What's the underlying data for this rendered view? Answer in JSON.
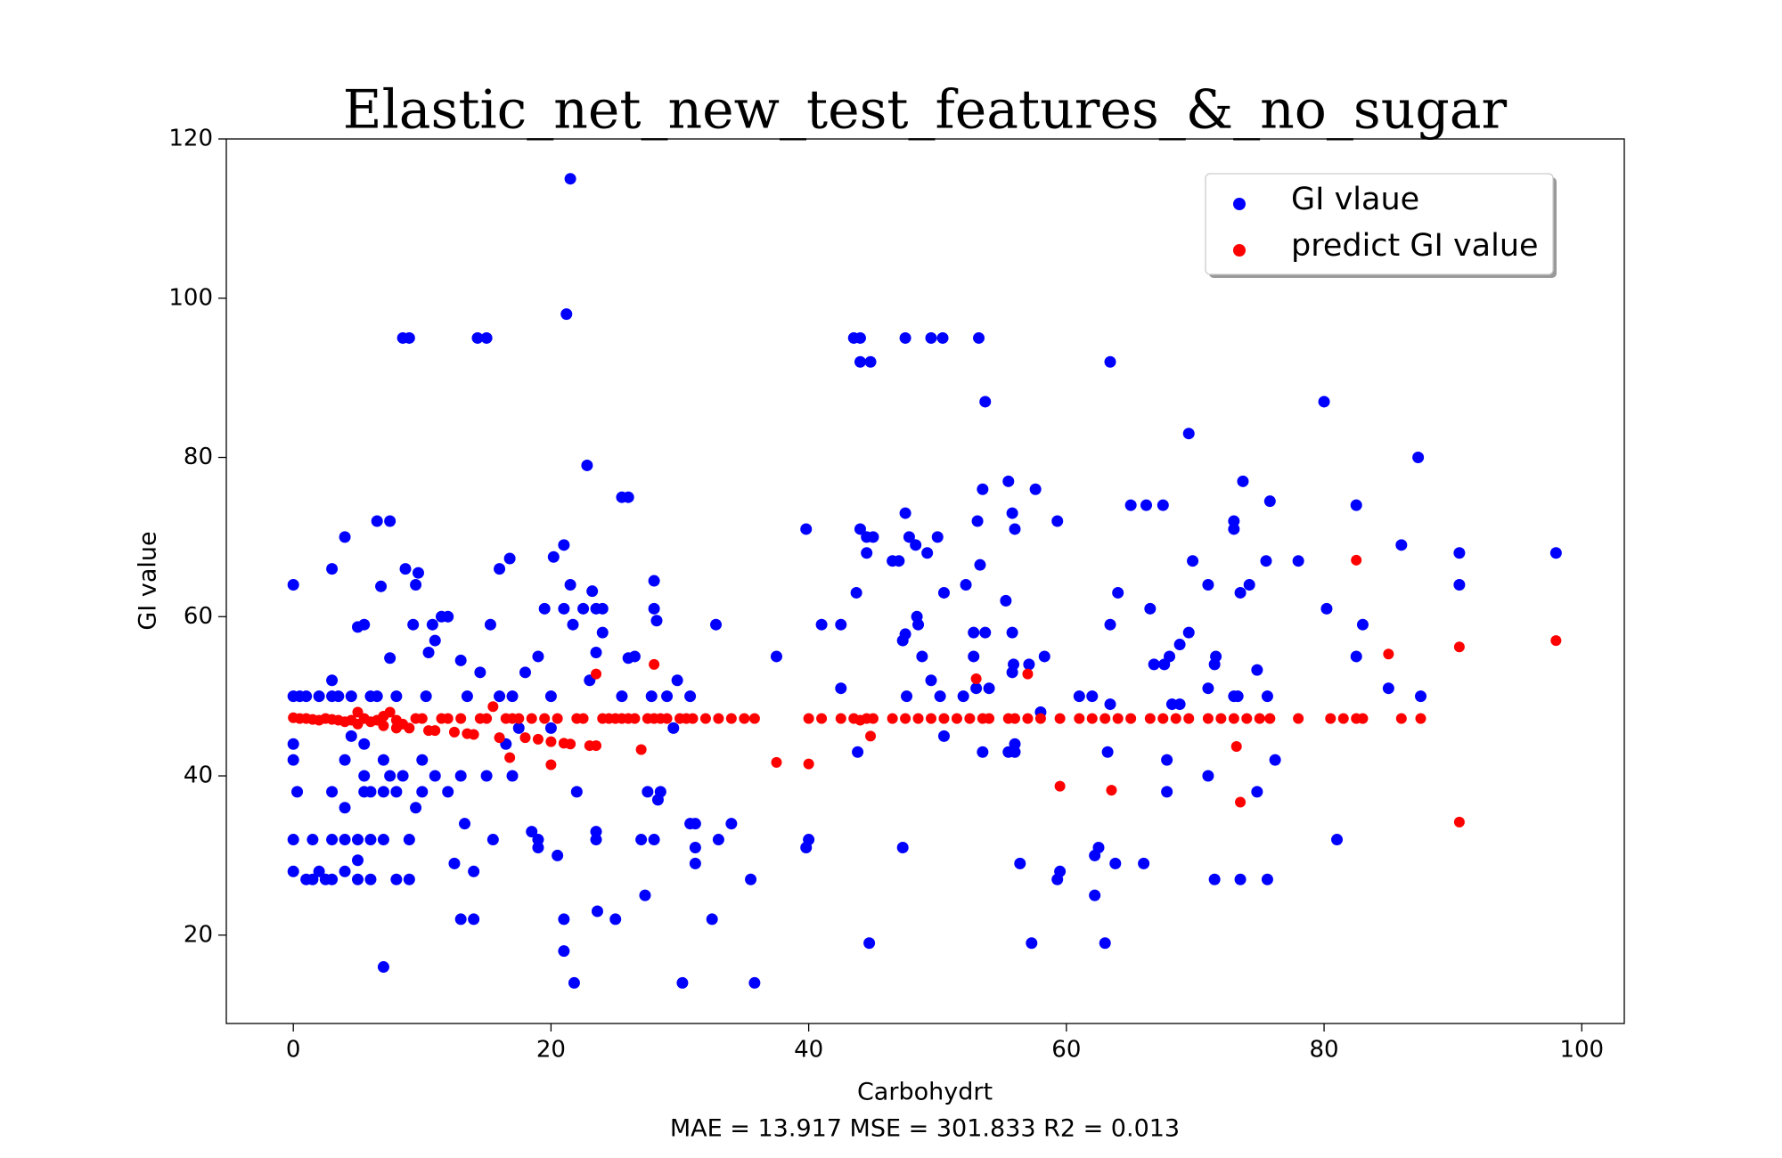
{
  "chart_data": {
    "type": "scatter",
    "title": "Elastic_net_new_test_features_&_no_sugar",
    "x_label": "Carbohydrt",
    "y_label": "GI value",
    "annotation": "MAE = 13.917 MSE = 301.833 R2 = 0.013",
    "xlim": [
      -5.2,
      103.3
    ],
    "ylim": [
      8.9,
      120
    ],
    "xticks": [
      0,
      20,
      40,
      60,
      80,
      100
    ],
    "yticks": [
      20,
      40,
      60,
      80,
      100,
      120
    ],
    "legend": "upper right",
    "series": [
      {
        "name": "GI vlaue",
        "color": "#0000ff",
        "x": [
          0,
          0,
          0,
          0,
          0,
          0,
          0.3,
          0.5,
          1,
          1,
          1.5,
          1.5,
          2,
          2,
          2.5,
          3,
          3,
          3,
          3,
          3,
          3,
          3.5,
          4,
          4,
          4,
          4,
          4,
          4.5,
          4.5,
          5,
          5,
          5,
          5,
          5.5,
          5.5,
          5.5,
          5.5,
          6,
          6,
          6,
          6,
          6.5,
          6.5,
          6.8,
          7,
          7,
          7,
          7,
          7.5,
          7.5,
          7.5,
          8,
          8,
          8,
          8.5,
          8.5,
          8.7,
          9,
          9,
          9,
          9.3,
          9.5,
          9.5,
          9.7,
          10,
          10,
          10.3,
          10.5,
          10.8,
          11,
          11,
          11.5,
          12,
          12,
          12.5,
          13,
          13,
          13,
          13.3,
          13.5,
          14,
          14,
          14.3,
          14.5,
          15,
          15,
          15.3,
          15.5,
          16,
          16,
          16.5,
          16.8,
          17,
          17,
          17.5,
          18,
          18.5,
          19,
          19,
          19,
          19.5,
          20,
          20,
          20.2,
          20.5,
          21,
          21,
          21,
          21,
          21.2,
          21.5,
          21.5,
          21.7,
          21.8,
          22,
          22.5,
          22.8,
          23,
          23.2,
          23.5,
          23.5,
          23.5,
          23.5,
          23.6,
          24,
          24,
          25,
          25.5,
          25.5,
          26,
          26,
          26.5,
          27,
          27.3,
          27.5,
          27.8,
          28,
          28,
          28,
          28.2,
          28.3,
          28.5,
          29,
          29.5,
          29.8,
          30.2,
          30.8,
          30.8,
          31.2,
          31.2,
          31.2,
          32.5,
          32.8,
          33,
          34,
          35.5,
          35.8,
          37.5,
          39.8,
          39.8,
          40,
          41,
          42.5,
          42.5,
          43.5,
          43.7,
          43.8,
          44,
          44,
          44,
          44.5,
          44.5,
          44.7,
          44.8,
          45,
          46.5,
          47,
          47.5,
          47.3,
          47.5,
          47.6,
          47.8,
          47.3,
          47.5,
          48.3,
          48.4,
          48.5,
          48.8,
          49.2,
          49.5,
          49.5,
          50,
          50.2,
          50.4,
          50.5,
          50.5,
          52,
          52.2,
          52.8,
          52.8,
          53,
          53.1,
          53.2,
          53.3,
          53.5,
          53.5,
          53.7,
          53.7,
          54,
          55.3,
          55.5,
          55.5,
          55.8,
          55.8,
          55.8,
          55.9,
          56,
          56,
          56,
          56.4,
          57.1,
          57.3,
          57.6,
          58,
          58.3,
          59.3,
          59.3,
          59.5,
          61,
          62,
          62.2,
          62.2,
          62.5,
          63,
          63.2,
          63.4,
          63.4,
          63.4,
          63.8,
          64,
          65,
          66,
          66.2,
          66.5,
          66.8,
          67.5,
          67.6,
          67.8,
          67.8,
          68,
          68.2,
          68.8,
          68.8,
          69.5,
          69.5,
          69.8,
          71,
          71,
          71,
          71.5,
          71.5,
          71.6,
          73,
          73,
          73,
          73.3,
          73.5,
          73.5,
          73.7,
          74.2,
          74.8,
          74.8,
          75.5,
          75.6,
          75.6,
          75.8,
          76.2,
          78,
          80,
          80.2,
          81,
          82.5,
          82.5,
          83,
          85,
          86,
          87.3,
          87.5,
          90.5,
          90.5,
          98
        ],
        "values": [
          64,
          50,
          44,
          42,
          32,
          28,
          38,
          50,
          50,
          27,
          32,
          27,
          50,
          28,
          27,
          66,
          52,
          50,
          38,
          32,
          27,
          50,
          70,
          42,
          32,
          28,
          36,
          50,
          45,
          58.7,
          32,
          27,
          29.4,
          59,
          44,
          40,
          38,
          50,
          38,
          32,
          27,
          72,
          50,
          63.8,
          42,
          38,
          32,
          16,
          72,
          54.8,
          40,
          50,
          38,
          27,
          95,
          40,
          66,
          95,
          32,
          27,
          59,
          64,
          36,
          65.5,
          42,
          38,
          50,
          55.5,
          59,
          57,
          40,
          60,
          60,
          38,
          29,
          22,
          54.5,
          40,
          34,
          50,
          28,
          22,
          95,
          53,
          95,
          40,
          59,
          32,
          66,
          50,
          44,
          67.3,
          50,
          40,
          46,
          53,
          33,
          55,
          32,
          31,
          61,
          50,
          46,
          67.5,
          30,
          69,
          61,
          18,
          22,
          98,
          64,
          115,
          59,
          14,
          38,
          61,
          79,
          52,
          63.2,
          61,
          55.5,
          33,
          32,
          23,
          58,
          61,
          22,
          75,
          50,
          75,
          54.8,
          55,
          32,
          25,
          38,
          50,
          64.5,
          61,
          32,
          59.5,
          37,
          38,
          50,
          46,
          52,
          14,
          50,
          34,
          34,
          31,
          29,
          22,
          59,
          32,
          34,
          27,
          14,
          55,
          71,
          31,
          32,
          59,
          59,
          51,
          95,
          63,
          43,
          92,
          71,
          95,
          70,
          68,
          19,
          92,
          70,
          67,
          67,
          73,
          57,
          57.8,
          50,
          70,
          31,
          95,
          69,
          60,
          59,
          55,
          68,
          95,
          52,
          70,
          50,
          95,
          45,
          63,
          50,
          64,
          58,
          55,
          51,
          72,
          95,
          66.5,
          76,
          43,
          87,
          58,
          51,
          62,
          77,
          43,
          73,
          58,
          53,
          54,
          71,
          43,
          44,
          29,
          54,
          19,
          76,
          48,
          55,
          72,
          27,
          28,
          50,
          50,
          25,
          30,
          31,
          19,
          43,
          92,
          49,
          59,
          29,
          63,
          74,
          29,
          74,
          61,
          54,
          74,
          54,
          38,
          42,
          55,
          49,
          49,
          56.5,
          83,
          58,
          67,
          64,
          40,
          51,
          27,
          54,
          55,
          71,
          72,
          50,
          50,
          63,
          27,
          77,
          64,
          53.3,
          38,
          67,
          50,
          27,
          74.5,
          42,
          67,
          87,
          61,
          32,
          74,
          55,
          59,
          51,
          69,
          80,
          50,
          68,
          64,
          68
        ]
      },
      {
        "name": "predict GI value",
        "color": "#ff0000",
        "x": [
          0,
          0.5,
          1,
          1.5,
          2,
          2.5,
          3,
          3.5,
          4,
          4.5,
          5,
          5,
          5.5,
          6,
          6.5,
          7,
          7,
          7.5,
          8,
          8,
          8.5,
          9,
          9.5,
          10,
          10.5,
          11,
          11.5,
          12,
          12.5,
          13,
          13.5,
          14,
          14.5,
          15,
          15.5,
          16,
          16.5,
          16.8,
          17,
          17.5,
          18,
          18.5,
          19,
          19.5,
          20,
          20,
          20.5,
          21,
          21.5,
          22,
          22.5,
          23,
          23.5,
          23.5,
          24,
          24.5,
          25,
          25.5,
          26,
          26.5,
          27,
          27.5,
          28,
          28,
          28.5,
          29,
          30,
          30.5,
          31,
          32,
          33,
          34,
          35,
          35.8,
          37.5,
          40,
          40,
          41,
          42.5,
          43.5,
          44,
          44.5,
          44.8,
          45,
          46.5,
          47.5,
          48.5,
          49.5,
          50.5,
          51.5,
          52.5,
          53,
          53.5,
          54,
          55.5,
          56,
          57,
          57,
          58,
          59.5,
          59.5,
          61,
          62,
          63,
          63.5,
          64,
          65,
          66.5,
          67.5,
          68.5,
          69.5,
          71,
          72,
          73,
          73.2,
          73.5,
          74,
          75,
          75.8,
          78,
          80.5,
          81.5,
          82.5,
          82.5,
          83,
          85,
          86,
          87.5,
          90.5,
          90.5,
          98
        ],
        "values": [
          47.3,
          47.2,
          47.2,
          47.1,
          47,
          47.2,
          47.1,
          47,
          46.8,
          47,
          48,
          46.5,
          47.2,
          46.8,
          47,
          47.5,
          46.3,
          48,
          47,
          46,
          46.5,
          46,
          47.2,
          47.2,
          45.7,
          45.7,
          47.2,
          47.2,
          45.5,
          47.2,
          45.3,
          45.2,
          47.2,
          47.2,
          48.7,
          44.8,
          47.2,
          42.3,
          47.2,
          47.2,
          44.8,
          47.2,
          44.6,
          47.2,
          41.4,
          44.3,
          47.2,
          44.1,
          44,
          47.2,
          47.2,
          43.8,
          43.8,
          52.8,
          47.2,
          47.2,
          47.2,
          47.2,
          47.2,
          47.2,
          43.3,
          47.2,
          54,
          47.2,
          47.2,
          47.2,
          47.2,
          47.2,
          47.2,
          47.2,
          47.2,
          47.2,
          47.2,
          47.2,
          41.7,
          41.5,
          47.2,
          47.2,
          47.2,
          47.2,
          47,
          47.2,
          45,
          47.2,
          47.2,
          47.2,
          47.2,
          47.2,
          47.2,
          47.2,
          47.2,
          52.2,
          47.2,
          47.2,
          47.2,
          47.2,
          52.8,
          47.2,
          47.2,
          38.7,
          47.2,
          47.2,
          47.2,
          47.2,
          38.2,
          47.2,
          47.2,
          47.2,
          47.2,
          47.2,
          47.2,
          47.2,
          47.2,
          47.2,
          43.7,
          36.7,
          47.2,
          47.2,
          47.2,
          47.2,
          47.2,
          47.2,
          67.1,
          47.2,
          47.2,
          55.3,
          47.2,
          47.2,
          56.2,
          34.2,
          57
        ]
      }
    ]
  }
}
